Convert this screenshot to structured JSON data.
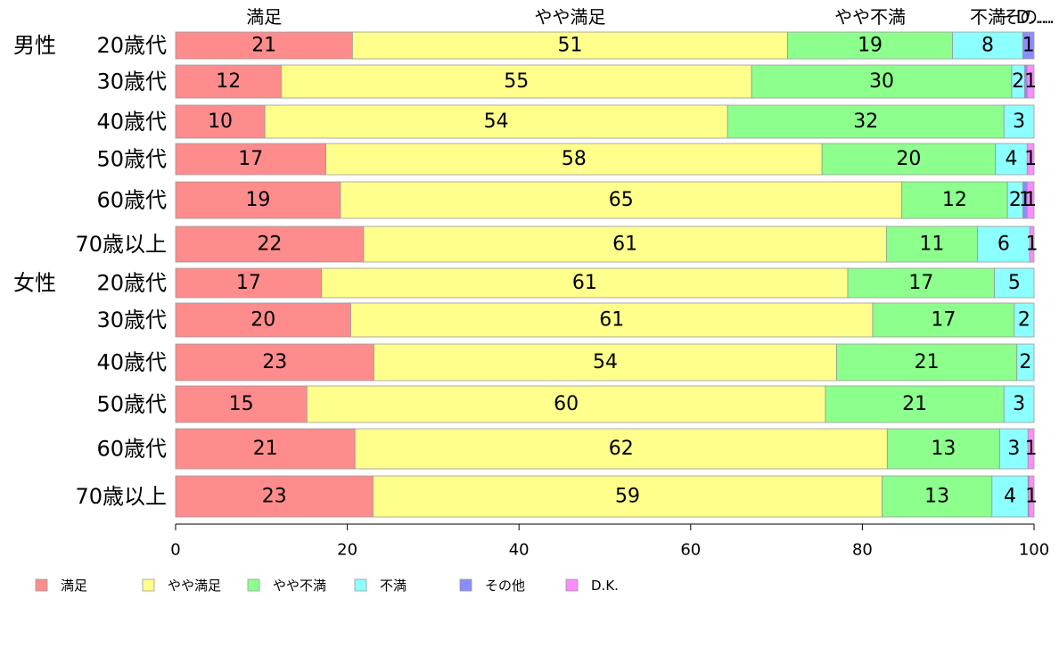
{
  "chart_data": {
    "type": "bar",
    "orientation": "horizontal",
    "stacked": true,
    "xlim": [
      0,
      100
    ],
    "x_ticks": [
      "0",
      "20",
      "40",
      "60",
      "80",
      "100"
    ],
    "group_labels": [
      "男性",
      "女性"
    ],
    "categories": [
      "20歳代",
      "30歳代",
      "40歳代",
      "50歳代",
      "60歳代",
      "70歳以上",
      "20歳代",
      "30歳代",
      "40歳代",
      "50歳代",
      "60歳代",
      "70歳以上"
    ],
    "top_labels": [
      "満足",
      "やや満足",
      "やや不満",
      "不満",
      "その...",
      "D...."
    ],
    "series": [
      {
        "name": "満足",
        "color": "#ff8c8c",
        "values": [
          20.6,
          12.3,
          10.4,
          17.5,
          19.2,
          21.9,
          17.0,
          20.4,
          23.1,
          15.3,
          20.9,
          23.0
        ]
      },
      {
        "name": "やや満足",
        "color": "#ffff8c",
        "values": [
          50.7,
          54.8,
          53.9,
          57.8,
          65.4,
          60.9,
          61.3,
          60.8,
          53.9,
          60.4,
          62.0,
          59.3
        ]
      },
      {
        "name": "やや不満",
        "color": "#8cff8c",
        "values": [
          19.2,
          30.3,
          32.2,
          20.2,
          12.3,
          10.6,
          17.1,
          16.5,
          21.0,
          20.8,
          13.1,
          12.8
        ]
      },
      {
        "name": "不満",
        "color": "#8cffff",
        "values": [
          8.2,
          1.5,
          3.5,
          3.7,
          1.8,
          6.1,
          4.6,
          2.3,
          2.0,
          3.5,
          3.3,
          4.2
        ]
      },
      {
        "name": "その他",
        "color": "#8c8cff",
        "values": [
          1.3,
          0.3,
          0.0,
          0.0,
          0.5,
          0.0,
          0.0,
          0.0,
          0.0,
          0.0,
          0.0,
          0.1
        ]
      },
      {
        "name": "D.K.",
        "color": "#ff8cff",
        "values": [
          0.0,
          0.8,
          0.0,
          0.8,
          0.8,
          0.5,
          0.0,
          0.0,
          0.0,
          0.0,
          0.7,
          0.6
        ]
      }
    ],
    "data_labels": [
      [
        "21",
        "51",
        "19",
        "8",
        "1",
        ""
      ],
      [
        "12",
        "55",
        "30",
        "2",
        "",
        "1"
      ],
      [
        "10",
        "54",
        "32",
        "3",
        "",
        ""
      ],
      [
        "17",
        "58",
        "20",
        "4",
        "",
        "1"
      ],
      [
        "19",
        "65",
        "12",
        "2",
        "1",
        "1"
      ],
      [
        "22",
        "61",
        "11",
        "6",
        "",
        "1"
      ],
      [
        "17",
        "61",
        "17",
        "5",
        "",
        ""
      ],
      [
        "20",
        "61",
        "17",
        "2",
        "",
        ""
      ],
      [
        "23",
        "54",
        "21",
        "2",
        "",
        ""
      ],
      [
        "15",
        "60",
        "21",
        "3",
        "",
        ""
      ],
      [
        "21",
        "62",
        "13",
        "3",
        "",
        "1"
      ],
      [
        "23",
        "59",
        "13",
        "4",
        "",
        "1"
      ]
    ],
    "grid": false,
    "legend_position": "bottom"
  }
}
